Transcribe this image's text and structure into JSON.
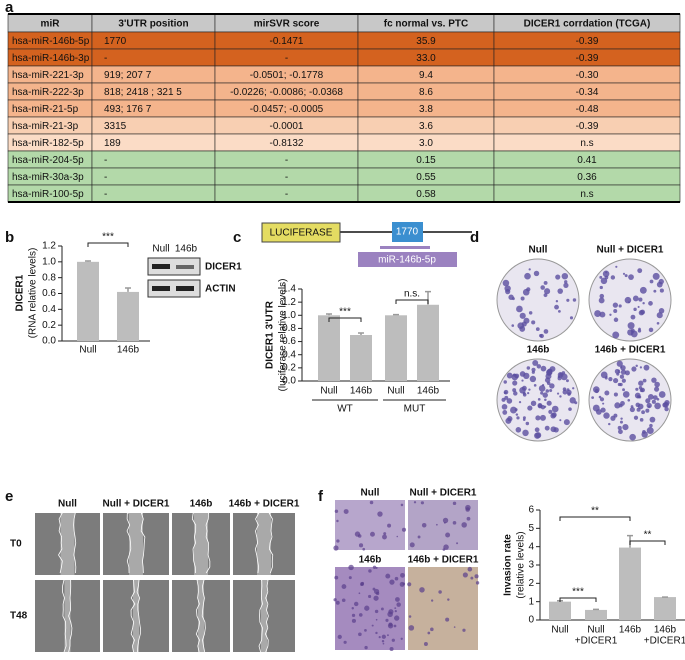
{
  "panel_labels": [
    "a",
    "b",
    "c",
    "d",
    "e",
    "f"
  ],
  "table": {
    "header": [
      "miR",
      "3'UTR position",
      "mirSVR score",
      "fc normal vs. PTC",
      "DICER1 corrdation  (TCGA)"
    ],
    "rows": [
      [
        "hsa-miR-146b-5p",
        "1770",
        "-0.1471",
        "35.9",
        "-0.39"
      ],
      [
        "hsa-miR-146b-3p",
        "-",
        "-",
        "33.0",
        "-0.39"
      ],
      [
        "hsa-miR-221-3p",
        "919; 207 7",
        "-0.0501; -0.1778",
        "9.4",
        "-0.30"
      ],
      [
        "hsa-miR-222-3p",
        "818; 2418 ; 321 5",
        "-0.0226; -0.0086; -0.0368",
        "8.6",
        "-0.34"
      ],
      [
        "hsa-miR-21-5p",
        "493; 176 7",
        "-0.0457; -0.0005",
        "3.8",
        "-0.48"
      ],
      [
        "hsa-miR-21-3p",
        "3315",
        "-0.0001",
        "3.6",
        "-0.39"
      ],
      [
        "hsa-miR-182-5p",
        "189",
        "-0.8132",
        "3.0",
        "n.s"
      ],
      [
        "hsa-miR-204-5p",
        "-",
        "-",
        "0.15",
        "0.41"
      ],
      [
        "hsa-miR-30a-3p",
        "-",
        "-",
        "0.55",
        "0.36"
      ],
      [
        "hsa-miR-100-5p",
        "-",
        "-",
        "0.58",
        "n.s"
      ]
    ],
    "header_color": "#c8c8c8",
    "row_colors": [
      "#d4621f",
      "#d4621f",
      "#f4b48c",
      "#f4b48c",
      "#f4b48c",
      "#f8cfb2",
      "#fbdcc6",
      "#b3d9a9",
      "#b3d9a9",
      "#b3d9a9"
    ]
  },
  "blot": {
    "lanes": [
      "Null",
      "146b"
    ],
    "bands": [
      "DICER1",
      "ACTIN"
    ]
  },
  "construct": {
    "reporter": "LUCIFERASE",
    "site": "1770",
    "mirna": "miR-146b-5p"
  },
  "panel_d": {
    "conditions": [
      "Null",
      "Null + DICER1",
      "146b",
      "146b + DICER1"
    ]
  },
  "panel_e": {
    "conditions": [
      "Null",
      "Null + DICER1",
      "146b",
      "146b + DICER1"
    ],
    "timepoints": [
      "T0",
      "T48"
    ]
  },
  "panel_f_images": {
    "conditions": [
      "Null",
      "Null + DICER1",
      "146b",
      "146b + DICER1"
    ]
  },
  "chart_data": [
    {
      "type": "bar",
      "ylabel": [
        "DICER1",
        "(RNA relative levels)"
      ],
      "categories": [
        "Null",
        "146b"
      ],
      "values": [
        1.0,
        0.62
      ],
      "errors": [
        0.01,
        0.05
      ],
      "color": "#bdbdbd",
      "ylim": [
        0,
        1.2
      ],
      "yticks": [
        {
          "value": 0,
          "label": "0.0"
        },
        {
          "value": 0.2,
          "label": "0.2"
        },
        {
          "value": 0.4,
          "label": "0.4"
        },
        {
          "value": 0.6,
          "label": "0.6"
        },
        {
          "value": 0.8,
          "label": "0.8"
        },
        {
          "value": 1.0,
          "label": "1.0"
        },
        {
          "value": 1.2,
          "label": "1.2"
        }
      ],
      "annotations": [
        "***"
      ]
    },
    {
      "type": "bar",
      "ylabel": [
        "DICER1 3'UTR",
        "(luciferase relative levels)"
      ],
      "categories": [
        "Null",
        "146b",
        "Null",
        "146b"
      ],
      "groups": [
        "WT",
        "MUT"
      ],
      "values": [
        1.0,
        0.7,
        1.0,
        1.16
      ],
      "errors": [
        0.02,
        0.03,
        0.01,
        0.2
      ],
      "color": "#bdbdbd",
      "ylim": [
        0,
        1.4
      ],
      "yticks": [
        {
          "value": 0,
          "label": "0.0"
        },
        {
          "value": 0.2,
          "label": "0.2"
        },
        {
          "value": 0.4,
          "label": "0.4"
        },
        {
          "value": 0.6,
          "label": "0.6"
        },
        {
          "value": 0.8,
          "label": "0.8"
        },
        {
          "value": 1.0,
          "label": "1.0"
        },
        {
          "value": 1.2,
          "label": "1.2"
        },
        {
          "value": 1.4,
          "label": "1.4"
        }
      ],
      "annotations": [
        "***",
        "n.s."
      ]
    },
    {
      "type": "bar",
      "ylabel": [
        "Invasion rate",
        "(relative levels)"
      ],
      "categories": [
        [
          "Null"
        ],
        [
          "Null",
          "+DICER1"
        ],
        [
          "146b"
        ],
        [
          "146b",
          "+DICER1"
        ]
      ],
      "values": [
        1.0,
        0.55,
        3.95,
        1.25
      ],
      "errors": [
        0.05,
        0.03,
        0.65,
        0
      ],
      "color": "#bdbdbd",
      "ylim": [
        0,
        6
      ],
      "yticks": [
        0,
        1,
        2,
        3,
        4,
        5,
        6
      ],
      "annotations": [
        "**",
        "**",
        "***"
      ]
    }
  ]
}
